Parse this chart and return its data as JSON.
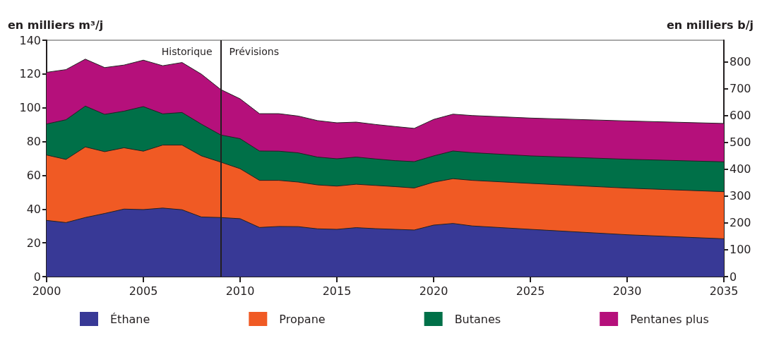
{
  "chart_data": {
    "type": "area",
    "stacked": true,
    "ylabel": "en milliers m³/j",
    "y2label": "en milliers b/j",
    "x": [
      2000,
      2001,
      2002,
      2003,
      2004,
      2005,
      2006,
      2007,
      2008,
      2009,
      2010,
      2011,
      2012,
      2013,
      2014,
      2015,
      2016,
      2017,
      2018,
      2019,
      2020,
      2021,
      2022,
      2025,
      2030,
      2035
    ],
    "series": [
      {
        "name": "Éthane",
        "color": "#383996",
        "values": [
          33.3,
          32,
          35,
          37.4,
          40,
          39.7,
          40.6,
          39.6,
          35.3,
          35,
          34.3,
          29.1,
          29.7,
          29.6,
          28.3,
          28,
          29,
          28.4,
          28,
          27.6,
          30.5,
          31.5,
          30,
          28,
          24.8,
          22.4
        ]
      },
      {
        "name": "Propane",
        "color": "#f05a24",
        "values": [
          38.7,
          37.4,
          41.8,
          36.6,
          36.3,
          34.6,
          37.3,
          38.3,
          36.2,
          32.8,
          29.6,
          27.9,
          27.3,
          26.4,
          26,
          25.6,
          25.7,
          25.6,
          25.3,
          24.9,
          25.4,
          26.5,
          27,
          27.2,
          27.6,
          27.9
        ]
      },
      {
        "name": "Butanes",
        "color": "#007048",
        "values": [
          18.4,
          23.5,
          24.2,
          22.1,
          21.7,
          26.4,
          18.5,
          19.3,
          18.8,
          16.1,
          17.8,
          17.4,
          17.3,
          17.3,
          16.5,
          16.2,
          16.1,
          15.7,
          15.4,
          15.6,
          15.6,
          16.4,
          16.4,
          16.3,
          17.1,
          17.7
        ]
      },
      {
        "name": "Pentanes plus",
        "color": "#b5107b",
        "values": [
          30.6,
          29.7,
          27.8,
          27.7,
          27.3,
          27.5,
          28.5,
          29.6,
          29.6,
          26.9,
          23.6,
          22.1,
          22.2,
          21.8,
          21.6,
          21.3,
          20.7,
          20.4,
          20.2,
          19.7,
          21.6,
          21.8,
          22,
          22.4,
          22.7,
          22.7
        ]
      }
    ],
    "xlim": [
      2000,
      2035
    ],
    "xticks": [
      2000,
      2005,
      2010,
      2015,
      2020,
      2025,
      2030,
      2035
    ],
    "ylim": [
      0,
      140
    ],
    "yticks": [
      0,
      20,
      40,
      60,
      80,
      100,
      120,
      140
    ],
    "y2lim": [
      0,
      880
    ],
    "y2ticks": [
      0,
      100,
      200,
      300,
      400,
      500,
      600,
      700,
      800
    ],
    "ref_lines": [
      {
        "axis": "x",
        "value": 2009,
        "color": "#231f20"
      }
    ],
    "annotations": [
      "Historique",
      "Prévisions"
    ],
    "legend": "bottom",
    "grid": false,
    "marker": "none"
  }
}
